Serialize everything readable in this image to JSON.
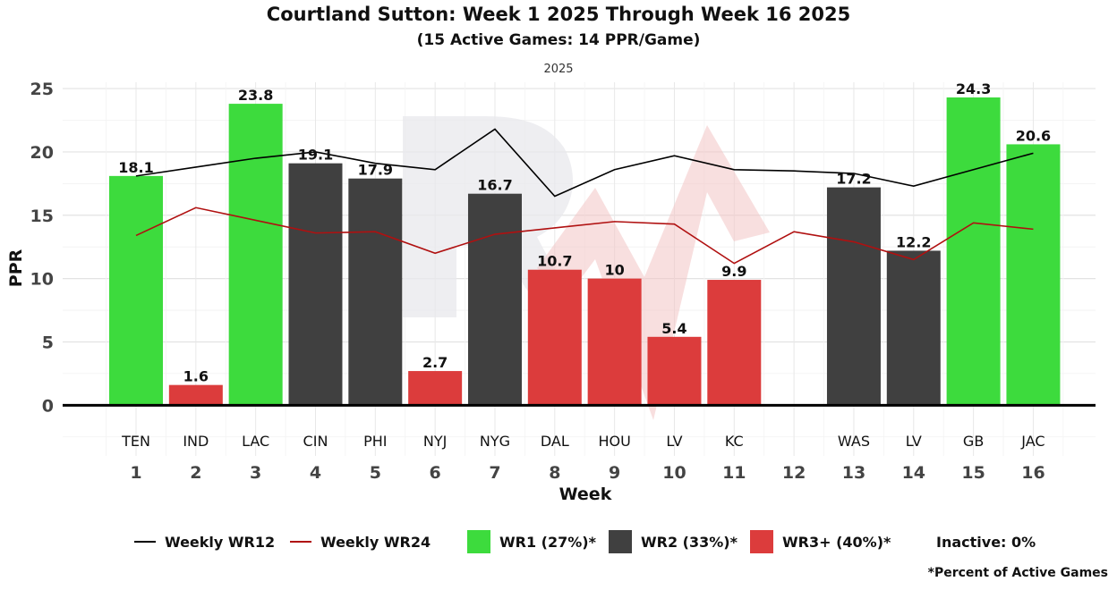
{
  "title": "Courtland Sutton: Week 1 2025 Through Week 16 2025",
  "subtitle": "(15 Active Games: 14 PPR/Game)",
  "facet_label": "2025",
  "colors": {
    "wr1": "#3ddb3d",
    "wr2": "#404040",
    "wr3": "#dc3c3c",
    "line_wr12": "#000000",
    "line_wr24": "#b01010",
    "watermark": "#e8e8ec"
  },
  "chart_data": {
    "type": "bar",
    "xlabel": "Week",
    "ylabel": "PPR",
    "ylim": [
      -4,
      25.5
    ],
    "yticks": [
      0,
      5,
      10,
      15,
      20,
      25
    ],
    "weeks": [
      1,
      2,
      3,
      4,
      5,
      6,
      7,
      8,
      9,
      10,
      11,
      12,
      13,
      14,
      15,
      16
    ],
    "opponents": [
      "TEN",
      "IND",
      "LAC",
      "CIN",
      "PHI",
      "NYJ",
      "NYG",
      "DAL",
      "HOU",
      "LV",
      "KC",
      "",
      "WAS",
      "LV",
      "GB",
      "JAC"
    ],
    "bars": [
      {
        "week": 1,
        "value": 18.1,
        "label": "18.1",
        "tier": "wr1"
      },
      {
        "week": 2,
        "value": 1.6,
        "label": "1.6",
        "tier": "wr3"
      },
      {
        "week": 3,
        "value": 23.8,
        "label": "23.8",
        "tier": "wr1"
      },
      {
        "week": 4,
        "value": 19.1,
        "label": "19.1",
        "tier": "wr2"
      },
      {
        "week": 5,
        "value": 17.9,
        "label": "17.9",
        "tier": "wr2"
      },
      {
        "week": 6,
        "value": 2.7,
        "label": "2.7",
        "tier": "wr3"
      },
      {
        "week": 7,
        "value": 16.7,
        "label": "16.7",
        "tier": "wr2"
      },
      {
        "week": 8,
        "value": 10.7,
        "label": "10.7",
        "tier": "wr3"
      },
      {
        "week": 9,
        "value": 10,
        "label": "10",
        "tier": "wr3"
      },
      {
        "week": 10,
        "value": 5.4,
        "label": "5.4",
        "tier": "wr3"
      },
      {
        "week": 11,
        "value": 9.9,
        "label": "9.9",
        "tier": "wr3"
      },
      {
        "week": 13,
        "value": 17.2,
        "label": "17.2",
        "tier": "wr2"
      },
      {
        "week": 14,
        "value": 12.2,
        "label": "12.2",
        "tier": "wr2"
      },
      {
        "week": 15,
        "value": 24.3,
        "label": "24.3",
        "tier": "wr1"
      },
      {
        "week": 16,
        "value": 20.6,
        "label": "20.6",
        "tier": "wr1"
      }
    ],
    "series": [
      {
        "name": "Weekly WR12",
        "key": "wr12",
        "values": [
          18.1,
          18.8,
          19.5,
          20.0,
          19.1,
          18.6,
          21.8,
          16.5,
          18.6,
          19.7,
          18.6,
          18.5,
          18.3,
          17.3,
          18.6,
          19.9
        ]
      },
      {
        "name": "Weekly WR24",
        "key": "wr24",
        "values": [
          13.4,
          15.6,
          14.6,
          13.6,
          13.7,
          12.0,
          13.5,
          14.0,
          14.5,
          14.3,
          11.2,
          13.7,
          12.9,
          11.5,
          14.4,
          13.9
        ]
      }
    ]
  },
  "legend": {
    "wr12": "Weekly WR12",
    "wr24": "Weekly WR24",
    "wr1": "WR1 (27%)*",
    "wr2": "WR2 (33%)*",
    "wr3": "WR3+ (40%)*",
    "inactive": "Inactive: 0%"
  },
  "footnote": "*Percent of Active Games"
}
